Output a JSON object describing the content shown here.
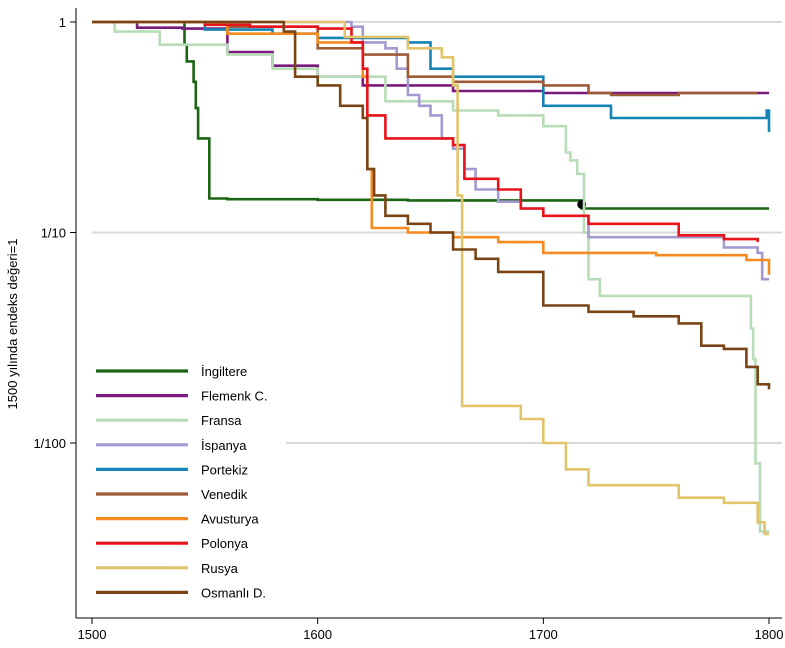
{
  "chart_data": {
    "type": "line",
    "title": "",
    "xlabel": "",
    "ylabel": "1500 yılında endeks değeri=1",
    "y_scale": "log",
    "xlim": [
      1500,
      1800
    ],
    "ylim": [
      0.0023,
      1.1
    ],
    "x_ticks": [
      1500,
      1600,
      1700,
      1800
    ],
    "x_tick_labels": [
      "1500",
      "1600",
      "1700",
      "1800"
    ],
    "y_ticks": [
      1,
      0.1,
      0.01
    ],
    "y_tick_labels": [
      "1",
      "1/10",
      "1/100"
    ],
    "grid": "horizontal",
    "legend_position": "lower-left",
    "series": [
      {
        "name": "İngiltere",
        "color": "#1a6414",
        "points": [
          [
            1500,
            1
          ],
          [
            1540,
            1
          ],
          [
            1541,
            0.78
          ],
          [
            1542,
            0.65
          ],
          [
            1545,
            0.52
          ],
          [
            1546,
            0.39
          ],
          [
            1547,
            0.28
          ],
          [
            1551,
            0.28
          ],
          [
            1552,
            0.145
          ],
          [
            1560,
            0.144
          ],
          [
            1600,
            0.143
          ],
          [
            1640,
            0.142
          ],
          [
            1717,
            0.141
          ],
          [
            1717,
            0.13
          ],
          [
            1800,
            0.13
          ]
        ],
        "marker": {
          "x": 1717,
          "y": 0.136
        }
      },
      {
        "name": "Flemenk C.",
        "color": "#7a1a7e",
        "points": [
          [
            1500,
            1
          ],
          [
            1520,
            0.94
          ],
          [
            1540,
            0.93
          ],
          [
            1560,
            0.72
          ],
          [
            1580,
            0.62
          ],
          [
            1600,
            0.55
          ],
          [
            1620,
            0.5
          ],
          [
            1660,
            0.47
          ],
          [
            1700,
            0.46
          ],
          [
            1800,
            0.46
          ]
        ]
      },
      {
        "name": "Fransa",
        "color": "#b8dcb8",
        "points": [
          [
            1500,
            1
          ],
          [
            1510,
            0.9
          ],
          [
            1530,
            0.78
          ],
          [
            1560,
            0.7
          ],
          [
            1580,
            0.6
          ],
          [
            1600,
            0.55
          ],
          [
            1630,
            0.42
          ],
          [
            1660,
            0.38
          ],
          [
            1680,
            0.36
          ],
          [
            1700,
            0.32
          ],
          [
            1710,
            0.24
          ],
          [
            1712,
            0.22
          ],
          [
            1715,
            0.19
          ],
          [
            1718,
            0.1
          ],
          [
            1720,
            0.06
          ],
          [
            1725,
            0.05
          ],
          [
            1790,
            0.05
          ],
          [
            1792,
            0.035
          ],
          [
            1793,
            0.025
          ],
          [
            1794,
            0.008
          ],
          [
            1796,
            0.0038
          ],
          [
            1800,
            0.0038
          ]
        ]
      },
      {
        "name": "İspanya",
        "color": "#a59ad0",
        "points": [
          [
            1500,
            1
          ],
          [
            1610,
            1
          ],
          [
            1615,
            0.95
          ],
          [
            1620,
            0.8
          ],
          [
            1630,
            0.75
          ],
          [
            1635,
            0.6
          ],
          [
            1640,
            0.45
          ],
          [
            1645,
            0.4
          ],
          [
            1650,
            0.36
          ],
          [
            1655,
            0.28
          ],
          [
            1660,
            0.25
          ],
          [
            1665,
            0.2
          ],
          [
            1670,
            0.16
          ],
          [
            1680,
            0.14
          ],
          [
            1690,
            0.13
          ],
          [
            1700,
            0.12
          ],
          [
            1720,
            0.095
          ],
          [
            1780,
            0.085
          ],
          [
            1795,
            0.08
          ],
          [
            1797,
            0.06
          ],
          [
            1800,
            0.06
          ]
        ]
      },
      {
        "name": "Portekiz",
        "color": "#1485b5",
        "points": [
          [
            1500,
            1
          ],
          [
            1550,
            0.92
          ],
          [
            1580,
            0.88
          ],
          [
            1600,
            0.84
          ],
          [
            1640,
            0.8
          ],
          [
            1650,
            0.6
          ],
          [
            1660,
            0.55
          ],
          [
            1700,
            0.4
          ],
          [
            1730,
            0.35
          ],
          [
            1798,
            0.35
          ],
          [
            1799,
            0.38
          ],
          [
            1800,
            0.3
          ]
        ]
      },
      {
        "name": "Venedik",
        "color": "#9d5b37",
        "points": [
          [
            1500,
            1
          ],
          [
            1560,
            0.95
          ],
          [
            1600,
            0.75
          ],
          [
            1620,
            0.7
          ],
          [
            1640,
            0.55
          ],
          [
            1660,
            0.52
          ],
          [
            1700,
            0.5
          ],
          [
            1720,
            0.46
          ],
          [
            1730,
            0.45
          ],
          [
            1760,
            0.46
          ],
          [
            1795,
            0.46
          ]
        ]
      },
      {
        "name": "Avusturya",
        "color": "#f58a1e",
        "points": [
          [
            1500,
            1
          ],
          [
            1560,
            0.88
          ],
          [
            1600,
            0.8
          ],
          [
            1620,
            0.55
          ],
          [
            1622,
            0.2
          ],
          [
            1624,
            0.105
          ],
          [
            1640,
            0.1
          ],
          [
            1660,
            0.095
          ],
          [
            1680,
            0.09
          ],
          [
            1700,
            0.08
          ],
          [
            1750,
            0.078
          ],
          [
            1790,
            0.074
          ],
          [
            1798,
            0.074
          ],
          [
            1800,
            0.063
          ]
        ]
      },
      {
        "name": "Polonya",
        "color": "#e8141c",
        "points": [
          [
            1500,
            1
          ],
          [
            1550,
            0.97
          ],
          [
            1570,
            0.95
          ],
          [
            1600,
            0.93
          ],
          [
            1615,
            0.8
          ],
          [
            1620,
            0.6
          ],
          [
            1622,
            0.36
          ],
          [
            1630,
            0.28
          ],
          [
            1660,
            0.26
          ],
          [
            1665,
            0.18
          ],
          [
            1680,
            0.16
          ],
          [
            1690,
            0.13
          ],
          [
            1700,
            0.12
          ],
          [
            1720,
            0.11
          ],
          [
            1760,
            0.097
          ],
          [
            1780,
            0.093
          ],
          [
            1795,
            0.09
          ]
        ]
      },
      {
        "name": "Rusya",
        "color": "#e2c46b",
        "points": [
          [
            1500,
            1
          ],
          [
            1610,
            1
          ],
          [
            1612,
            0.85
          ],
          [
            1640,
            0.75
          ],
          [
            1655,
            0.68
          ],
          [
            1660,
            0.5
          ],
          [
            1662,
            0.15
          ],
          [
            1664,
            0.015
          ],
          [
            1680,
            0.015
          ],
          [
            1690,
            0.013
          ],
          [
            1700,
            0.01
          ],
          [
            1710,
            0.0075
          ],
          [
            1720,
            0.0063
          ],
          [
            1740,
            0.0063
          ],
          [
            1760,
            0.0055
          ],
          [
            1780,
            0.0052
          ],
          [
            1795,
            0.0042
          ],
          [
            1798,
            0.0037
          ],
          [
            1800,
            0.0037
          ]
        ]
      },
      {
        "name": "Osmanlı D.",
        "color": "#7a4516",
        "points": [
          [
            1500,
            1
          ],
          [
            1580,
            1
          ],
          [
            1585,
            0.9
          ],
          [
            1590,
            0.55
          ],
          [
            1600,
            0.5
          ],
          [
            1610,
            0.4
          ],
          [
            1620,
            0.35
          ],
          [
            1622,
            0.2
          ],
          [
            1625,
            0.15
          ],
          [
            1630,
            0.12
          ],
          [
            1640,
            0.11
          ],
          [
            1650,
            0.1
          ],
          [
            1660,
            0.083
          ],
          [
            1670,
            0.075
          ],
          [
            1680,
            0.065
          ],
          [
            1700,
            0.045
          ],
          [
            1720,
            0.042
          ],
          [
            1740,
            0.04
          ],
          [
            1760,
            0.037
          ],
          [
            1770,
            0.029
          ],
          [
            1780,
            0.028
          ],
          [
            1790,
            0.023
          ],
          [
            1795,
            0.019
          ],
          [
            1800,
            0.018
          ]
        ]
      }
    ]
  }
}
